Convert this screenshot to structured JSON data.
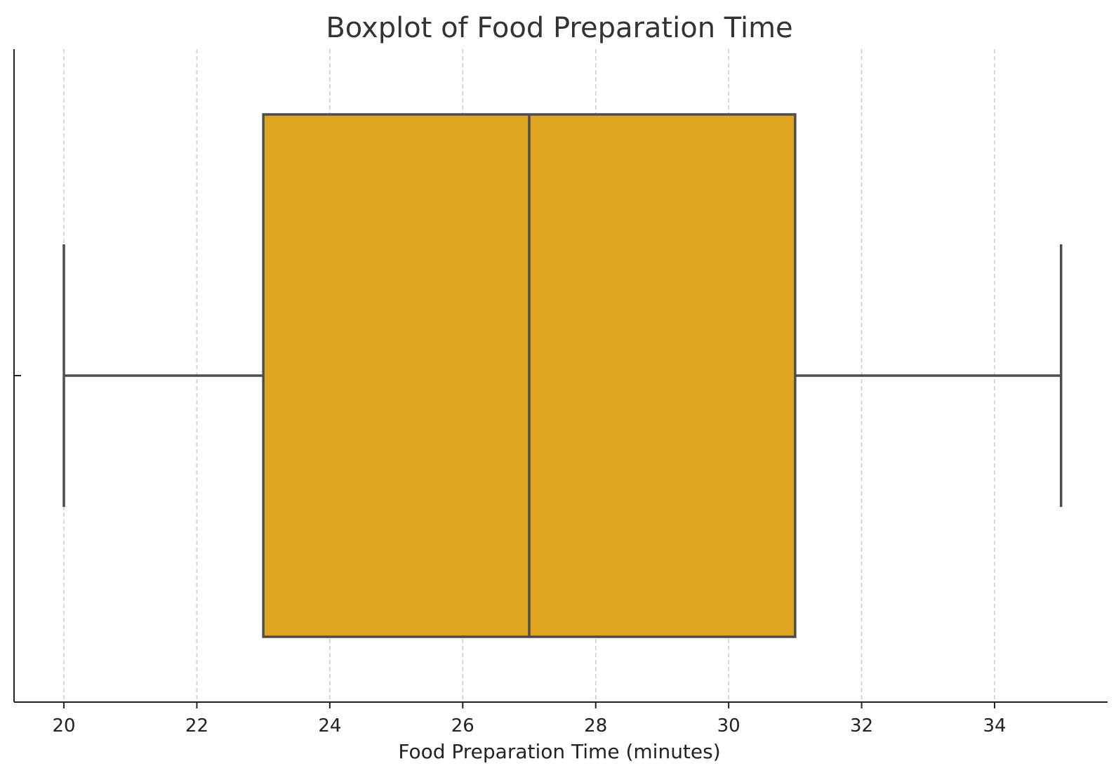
{
  "chart_data": {
    "type": "boxplot",
    "title": "Boxplot of Food Preparation Time",
    "xlabel": "Food Preparation Time (minutes)",
    "ylabel": "",
    "orientation": "horizontal",
    "xlim": [
      19.25,
      35.7
    ],
    "xticks": [
      20,
      22,
      24,
      26,
      28,
      30,
      32,
      34
    ],
    "grid": "vertical dashed",
    "legend": "none",
    "boxes": [
      {
        "min": 20,
        "q1": 23,
        "median": 27,
        "q3": 31,
        "max": 35
      }
    ],
    "colors": {
      "box_fill": "#DFA420",
      "lines": "#4d4d4d",
      "grid": "#cccccc",
      "axis": "#222222"
    }
  }
}
